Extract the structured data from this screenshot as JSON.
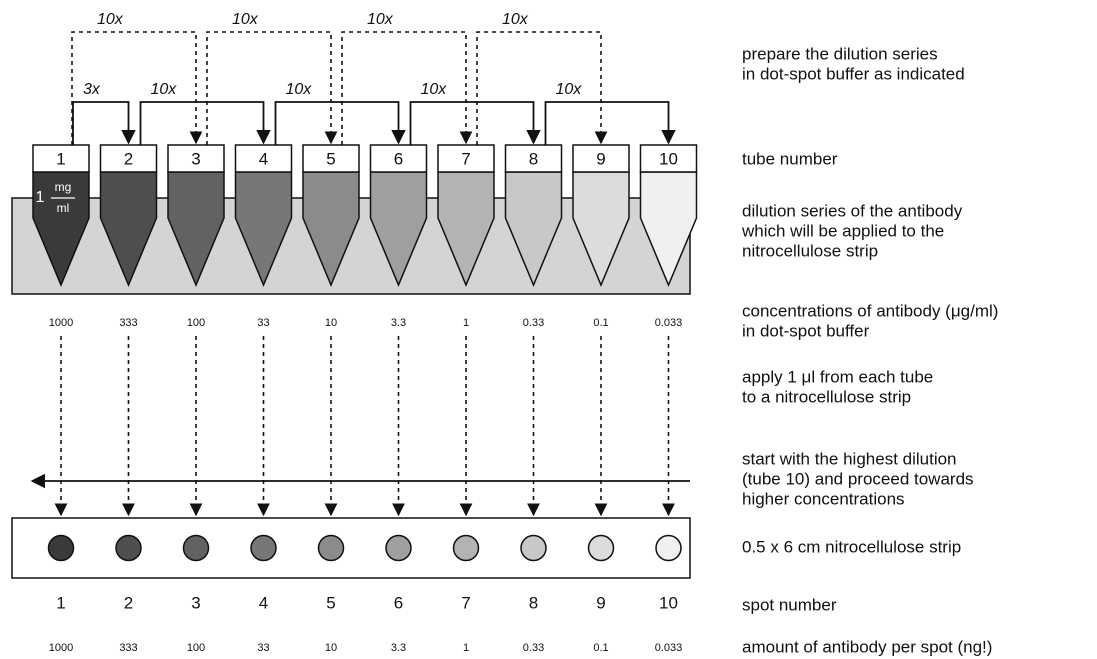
{
  "top_steps": [
    "10x",
    "10x",
    "10x",
    "10x"
  ],
  "steps": [
    "3x",
    "10x",
    "10x",
    "10x",
    "10x"
  ],
  "tubes": [
    "1",
    "2",
    "3",
    "4",
    "5",
    "6",
    "7",
    "8",
    "9",
    "10"
  ],
  "tube1_label": {
    "amount": "1",
    "numerator": "mg",
    "denominator": "ml"
  },
  "concentrations": [
    "1000",
    "333",
    "100",
    "33",
    "10",
    "3.3",
    "1",
    "0.33",
    "0.1",
    "0.033"
  ],
  "spots": [
    "1",
    "2",
    "3",
    "4",
    "5",
    "6",
    "7",
    "8",
    "9",
    "10"
  ],
  "amounts": [
    "1000",
    "333",
    "100",
    "33",
    "10",
    "3.3",
    "1",
    "0.33",
    "0.1",
    "0.033"
  ],
  "notes": [
    [
      "prepare the dilution series",
      "in dot-spot buffer as indicated"
    ],
    [
      "tube number"
    ],
    [
      "dilution series of the antibody",
      "which will be applied to the",
      "nitrocellulose strip"
    ],
    [
      "concentrations of antibody (μg/ml)",
      "in dot-spot buffer"
    ],
    [
      "apply 1 μl from each tube",
      "to a nitrocellulose strip"
    ],
    [
      "start with the highest dilution",
      "(tube 10) and proceed towards",
      "higher concentrations"
    ],
    [
      "0.5 x 6 cm nitrocellulose strip"
    ],
    [
      "spot number"
    ],
    [
      "amount of antibody per spot (ng!)"
    ]
  ]
}
